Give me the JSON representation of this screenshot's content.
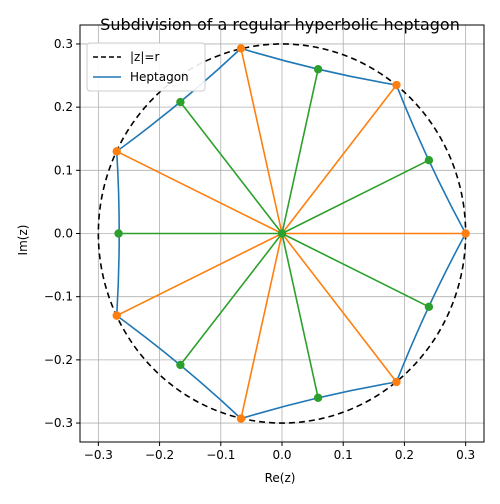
{
  "chart_data": {
    "type": "line",
    "title": "Subdivision of a regular hyperbolic heptagon",
    "xlabel": "Re(z)",
    "ylabel": "Im(z)",
    "xlim": [
      -0.33,
      0.33
    ],
    "ylim": [
      -0.33,
      0.33
    ],
    "grid": true,
    "legend_position": "top-left",
    "x_ticks": [
      -0.3,
      -0.2,
      -0.1,
      0.0,
      0.1,
      0.2,
      0.3
    ],
    "y_ticks": [
      -0.3,
      -0.2,
      -0.1,
      0.0,
      0.1,
      0.2,
      0.3
    ],
    "x_tick_labels": [
      "−0.3",
      "−0.2",
      "−0.1",
      "0.0",
      "0.1",
      "0.2",
      "0.3"
    ],
    "y_tick_labels": [
      "−0.3",
      "−0.2",
      "−0.1",
      "0.0",
      "0.1",
      "0.2",
      "0.3"
    ],
    "colors": {
      "circle": "#000000",
      "heptagon": "#1f77b4",
      "vertex_spokes": "#ff7f0e",
      "midpoint_spokes": "#2ca02c",
      "grid": "#b0b0b0"
    },
    "circle": {
      "name": "|z|=r",
      "radius": 0.3,
      "style": "dashed"
    },
    "heptagon": {
      "name": "Heptagon",
      "vertices": [
        [
          0.3,
          0.0
        ],
        [
          0.187,
          0.235
        ],
        [
          -0.067,
          0.293
        ],
        [
          -0.27,
          0.13
        ],
        [
          -0.27,
          -0.13
        ],
        [
          -0.067,
          -0.293
        ],
        [
          0.187,
          -0.235
        ]
      ],
      "edge_midpoints": [
        [
          0.24,
          0.116
        ],
        [
          0.059,
          0.26
        ],
        [
          -0.166,
          0.208
        ],
        [
          -0.267,
          0.0
        ],
        [
          -0.166,
          -0.208
        ],
        [
          0.059,
          -0.26
        ],
        [
          0.24,
          -0.116
        ]
      ]
    },
    "center": [
      0.0,
      0.0
    ]
  }
}
